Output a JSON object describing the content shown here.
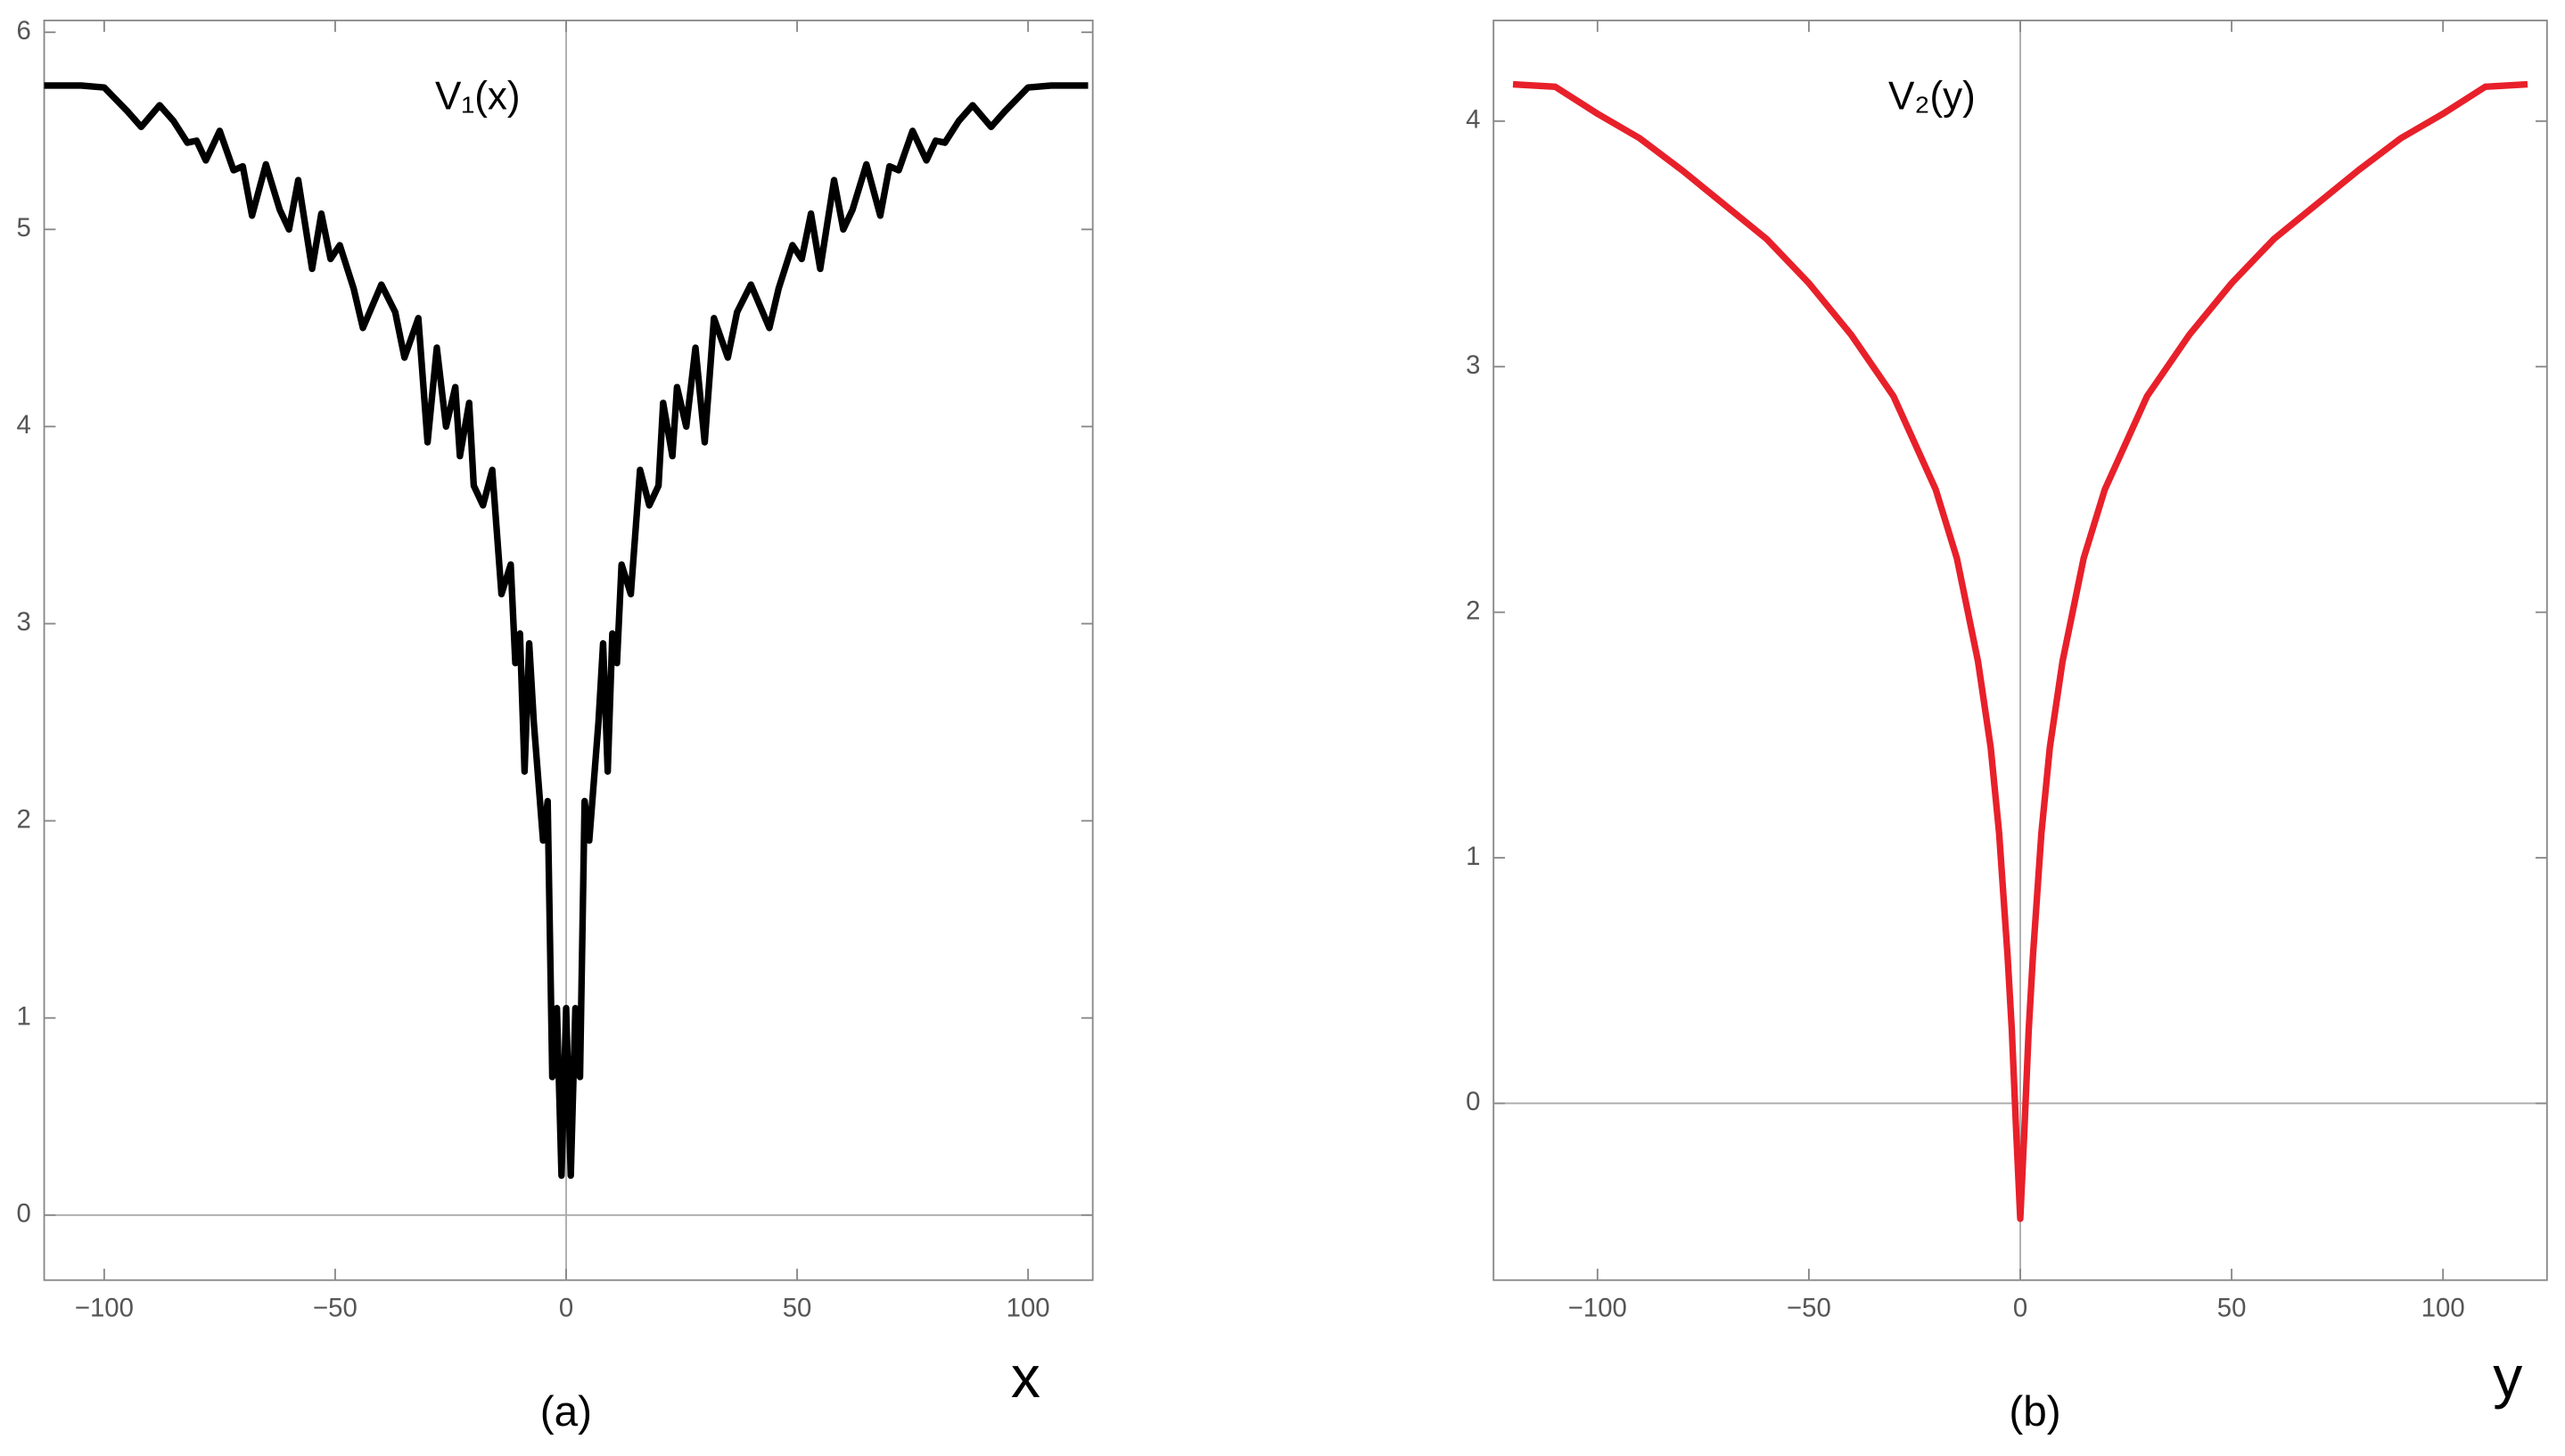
{
  "chart_data": [
    {
      "type": "line",
      "annotation": "V₁(x)",
      "xlabel": "x",
      "caption": "(a)",
      "xlim": [
        -113,
        114
      ],
      "ylim": [
        -0.33,
        6.06
      ],
      "xticks": [
        {
          "value": -100,
          "label": "−100"
        },
        {
          "value": -50,
          "label": "−50"
        },
        0,
        50,
        100
      ],
      "yticks": [
        0,
        1,
        2,
        3,
        4,
        5,
        6
      ],
      "x": [
        -113,
        -105,
        -100,
        -95,
        -92,
        -88,
        -85,
        -82,
        -80,
        -78,
        -75,
        -72,
        -70,
        -68,
        -65,
        -62,
        -60,
        -58,
        -55,
        -53,
        -51,
        -49,
        -46,
        -44,
        -40,
        -37,
        -35,
        -32,
        -30,
        -28,
        -26,
        -24,
        -23,
        -21,
        -20,
        -18,
        -16,
        -14,
        -12,
        -11,
        -10,
        -9,
        -8,
        -7,
        -5,
        -4,
        -3,
        -2,
        -1,
        0,
        1,
        2,
        3,
        4,
        5,
        7,
        8,
        9,
        10,
        11,
        12,
        14,
        16,
        18,
        20,
        21,
        23,
        24,
        26,
        28,
        30,
        32,
        35,
        37,
        40,
        44,
        46,
        49,
        51,
        53,
        55,
        58,
        60,
        62,
        65,
        68,
        70,
        72,
        75,
        78,
        80,
        82,
        85,
        88,
        92,
        95,
        100,
        105,
        113
      ],
      "series": [
        {
          "name": "V1",
          "color": "#000000",
          "values": [
            5.73,
            5.73,
            5.72,
            5.6,
            5.52,
            5.63,
            5.55,
            5.44,
            5.45,
            5.35,
            5.5,
            5.3,
            5.32,
            5.07,
            5.33,
            5.1,
            5.0,
            5.25,
            4.8,
            5.08,
            4.85,
            4.92,
            4.7,
            4.5,
            4.72,
            4.58,
            4.35,
            4.55,
            3.92,
            4.4,
            4.0,
            4.2,
            3.85,
            4.12,
            3.7,
            3.6,
            3.78,
            3.15,
            3.3,
            2.8,
            2.95,
            2.25,
            2.9,
            2.5,
            1.9,
            2.1,
            0.7,
            1.05,
            0.2,
            1.05,
            0.2,
            1.05,
            0.7,
            2.1,
            1.9,
            2.5,
            2.9,
            2.25,
            2.95,
            2.8,
            3.3,
            3.15,
            3.78,
            3.6,
            3.7,
            4.12,
            3.85,
            4.2,
            4.0,
            4.4,
            3.92,
            4.55,
            4.35,
            4.58,
            4.72,
            4.5,
            4.7,
            4.92,
            4.85,
            5.08,
            4.8,
            5.25,
            5.0,
            5.1,
            5.33,
            5.07,
            5.32,
            5.3,
            5.5,
            5.35,
            5.45,
            5.44,
            5.55,
            5.63,
            5.52,
            5.6,
            5.72,
            5.73,
            5.73
          ]
        }
      ]
    },
    {
      "type": "line",
      "annotation": "V₂(y)",
      "xlabel": "y",
      "caption": "(b)",
      "xlim": [
        -124.6,
        124.6
      ],
      "ylim": [
        -0.72,
        4.41
      ],
      "xticks": [
        {
          "value": -100,
          "label": "−100"
        },
        {
          "value": -50,
          "label": "−50"
        },
        0,
        50,
        100
      ],
      "yticks": [
        0,
        1,
        2,
        3,
        4
      ],
      "x": [
        -120,
        -110,
        -100,
        -90,
        -80,
        -70,
        -60,
        -50,
        -40,
        -30,
        -20,
        -15,
        -10,
        -7,
        -5,
        -3,
        -2,
        -1,
        0,
        1,
        2,
        3,
        5,
        7,
        10,
        15,
        20,
        30,
        40,
        50,
        60,
        70,
        80,
        90,
        100,
        110,
        120
      ],
      "series": [
        {
          "name": "V2",
          "color": "#e8202a",
          "values": [
            4.15,
            4.14,
            4.03,
            3.93,
            3.8,
            3.66,
            3.52,
            3.34,
            3.13,
            2.88,
            2.5,
            2.22,
            1.8,
            1.45,
            1.1,
            0.6,
            0.3,
            -0.1,
            -0.47,
            -0.1,
            0.3,
            0.6,
            1.1,
            1.45,
            1.8,
            2.22,
            2.5,
            2.88,
            3.13,
            3.34,
            3.52,
            3.66,
            3.8,
            3.93,
            4.03,
            4.14,
            4.15
          ]
        }
      ]
    }
  ]
}
